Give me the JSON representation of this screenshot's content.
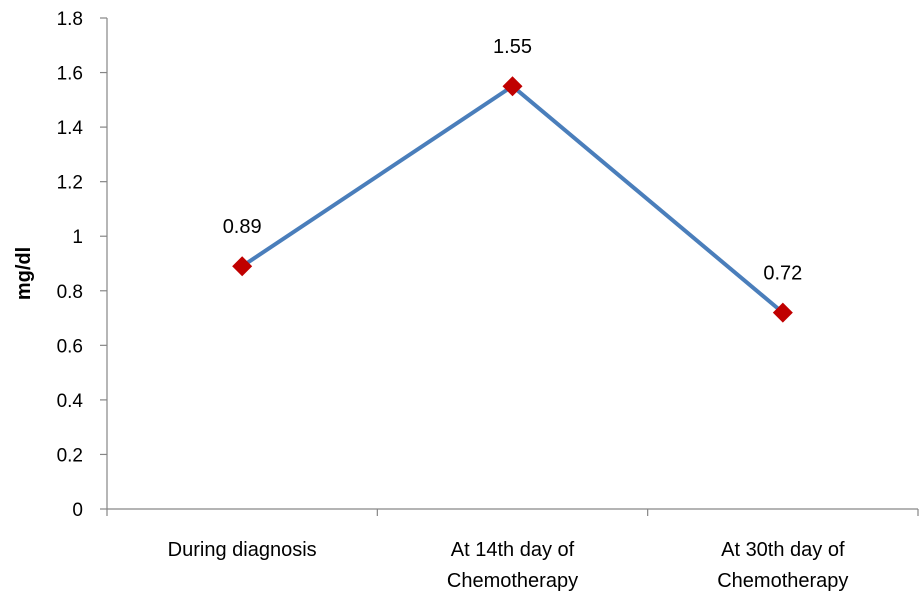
{
  "chart_data": {
    "type": "line",
    "categories": [
      [
        "During diagnosis"
      ],
      [
        "At 14th day of",
        "Chemotherapy"
      ],
      [
        "At 30th day of",
        "Chemotherapy"
      ]
    ],
    "series": [
      {
        "values": [
          0.89,
          1.55,
          0.72
        ],
        "labels": [
          "0.89",
          "1.55",
          "0.72"
        ]
      }
    ],
    "ylabel": "mg/dl",
    "ylim": [
      0,
      1.8
    ],
    "yticks": [
      "0",
      "0.2",
      "0.4",
      "0.6",
      "0.8",
      "1",
      "1.2",
      "1.4",
      "1.6",
      "1.8"
    ],
    "grid": false,
    "legend": "none",
    "colors": {
      "line": "#4A7EBB",
      "marker": "#C00000",
      "axis": "#868686"
    }
  }
}
